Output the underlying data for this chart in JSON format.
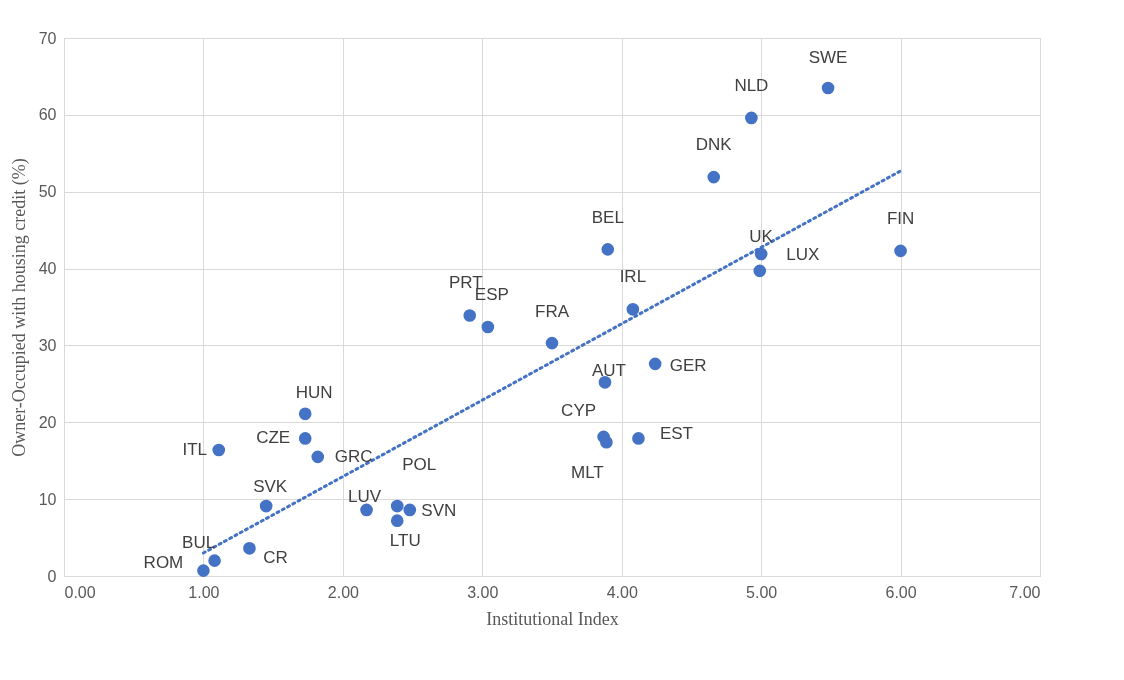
{
  "chart_data": {
    "type": "scatter",
    "xlabel": "Institutional Index",
    "ylabel": "Owner-Occupied with housing credit (%)",
    "series": [
      {
        "color": "#4472c4",
        "marker": "circle",
        "x": [
          5.48,
          4.93,
          4.66,
          6.0,
          5.0,
          4.99,
          3.9,
          4.08,
          2.91,
          3.04,
          3.5,
          4.24,
          3.88,
          3.87,
          3.89,
          4.12,
          1.73,
          1.73,
          1.11,
          1.82,
          1.45,
          2.39,
          2.48,
          2.17,
          2.39,
          1.33,
          1.08,
          1.0
        ],
        "values": [
          63.5,
          59.6,
          51.9,
          42.3,
          41.9,
          39.7,
          42.5,
          34.7,
          33.9,
          32.4,
          30.3,
          27.6,
          25.2,
          18.1,
          17.4,
          17.9,
          21.1,
          17.9,
          16.4,
          15.5,
          9.1,
          9.1,
          8.6,
          8.6,
          7.2,
          3.6,
          2.0,
          0.7
        ]
      },
      {
        "type": "line",
        "color": "#4472c4",
        "line_style": "dotted",
        "x": [
          1.0,
          6.0
        ],
        "values": [
          3.0,
          52.7
        ]
      }
    ],
    "annotations": [
      {
        "text": "SWE",
        "x": 5.48,
        "y": 63.5
      },
      {
        "text": "NLD",
        "x": 4.93,
        "y": 59.6
      },
      {
        "text": "DNK",
        "x": 4.66,
        "y": 51.9
      },
      {
        "text": "FIN",
        "x": 6.0,
        "y": 42.3
      },
      {
        "text": "UK",
        "x": 5.0,
        "y": 41.9
      },
      {
        "text": "LUX",
        "x": 4.99,
        "y": 39.7
      },
      {
        "text": "BEL",
        "x": 3.9,
        "y": 42.5
      },
      {
        "text": "IRL",
        "x": 4.08,
        "y": 34.7
      },
      {
        "text": "PRT",
        "x": 2.91,
        "y": 33.9
      },
      {
        "text": "ESP",
        "x": 3.04,
        "y": 32.4
      },
      {
        "text": "FRA",
        "x": 3.5,
        "y": 30.3
      },
      {
        "text": "GER",
        "x": 4.24,
        "y": 27.6
      },
      {
        "text": "AUT",
        "x": 3.88,
        "y": 25.2
      },
      {
        "text": "CYP",
        "x": 3.87,
        "y": 18.1
      },
      {
        "text": "MLT",
        "x": 3.89,
        "y": 17.4
      },
      {
        "text": "EST",
        "x": 4.12,
        "y": 17.9
      },
      {
        "text": "HUN",
        "x": 1.73,
        "y": 21.1
      },
      {
        "text": "CZE",
        "x": 1.73,
        "y": 17.9
      },
      {
        "text": "ITL",
        "x": 1.11,
        "y": 16.4
      },
      {
        "text": "GRC",
        "x": 1.82,
        "y": 15.5
      },
      {
        "text": "SVK",
        "x": 1.45,
        "y": 9.1
      },
      {
        "text": "POL",
        "x": 2.39,
        "y": 9.1
      },
      {
        "text": "SVN",
        "x": 2.48,
        "y": 8.6
      },
      {
        "text": "LUV",
        "x": 2.17,
        "y": 8.6
      },
      {
        "text": "LTU",
        "x": 2.39,
        "y": 7.2
      },
      {
        "text": "CR",
        "x": 1.33,
        "y": 3.6
      },
      {
        "text": "BUL",
        "x": 1.08,
        "y": 2.0
      },
      {
        "text": "ROM",
        "x": 1.0,
        "y": 0.7
      }
    ],
    "xlim": [
      0,
      7
    ],
    "xticks": [
      {
        "value": 0,
        "label": "0.00"
      },
      {
        "value": 1,
        "label": "1.00"
      },
      {
        "value": 2,
        "label": "2.00"
      },
      {
        "value": 3,
        "label": "3.00"
      },
      {
        "value": 4,
        "label": "4.00"
      },
      {
        "value": 5,
        "label": "5.00"
      },
      {
        "value": 6,
        "label": "6.00"
      },
      {
        "value": 7,
        "label": "7.00"
      }
    ],
    "ylim": [
      0,
      70
    ],
    "yticks": [
      0,
      10,
      20,
      30,
      40,
      50,
      60,
      70
    ],
    "grid": true
  }
}
